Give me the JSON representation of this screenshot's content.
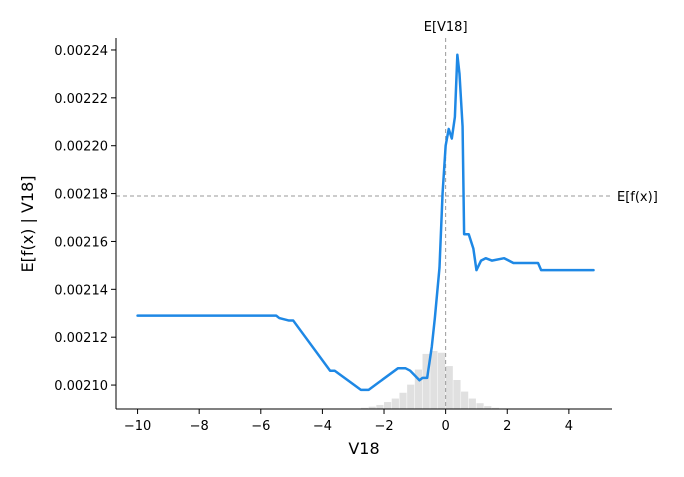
{
  "chart_data": {
    "type": "line",
    "title": "",
    "xlabel": "V18",
    "ylabel": "E[f(x) | V18]",
    "xlim": [
      -10.7,
      5.4
    ],
    "ylim": [
      0.00209,
      0.002245
    ],
    "xticks": [
      -10,
      -8,
      -6,
      -4,
      -2,
      0,
      2,
      4
    ],
    "xtick_labels": [
      "−10",
      "−8",
      "−6",
      "−4",
      "−2",
      "0",
      "2",
      "4"
    ],
    "yticks": [
      0.0021,
      0.00212,
      0.00214,
      0.00216,
      0.00218,
      0.0022,
      0.00222,
      0.00224
    ],
    "ytick_labels": [
      "0.00210",
      "0.00212",
      "0.00214",
      "0.00216",
      "0.00218",
      "0.00220",
      "0.00222",
      "0.00224"
    ],
    "grid": false,
    "series": [
      {
        "color": "#1e88e5",
        "x": [
          -10.0,
          -5.5,
          -5.4,
          -5.1,
          -4.95,
          -3.75,
          -3.6,
          -2.75,
          -2.5,
          -1.55,
          -1.5,
          -1.3,
          -1.15,
          -1.0,
          -0.85,
          -0.75,
          -0.6,
          -0.45,
          -0.35,
          -0.2,
          -0.1,
          0.0,
          0.1,
          0.2,
          0.3,
          0.38,
          0.45,
          0.55,
          0.6,
          0.75,
          0.9,
          1.0,
          1.15,
          1.3,
          1.5,
          1.9,
          2.2,
          2.6,
          3.0,
          3.1,
          3.5,
          4.8
        ],
        "y": [
          0.002129,
          0.002129,
          0.002128,
          0.002127,
          0.002127,
          0.002106,
          0.002106,
          0.002098,
          0.002098,
          0.002107,
          0.002107,
          0.002107,
          0.002106,
          0.002104,
          0.002102,
          0.002103,
          0.002103,
          0.002116,
          0.002128,
          0.002149,
          0.00218,
          0.0022,
          0.002207,
          0.002203,
          0.002212,
          0.002238,
          0.00223,
          0.002208,
          0.002163,
          0.002163,
          0.002157,
          0.002148,
          0.002152,
          0.002153,
          0.002152,
          0.002153,
          0.002151,
          0.002151,
          0.002151,
          0.002148,
          0.002148,
          0.002148
        ]
      }
    ],
    "reference_lines": [
      {
        "orientation": "vertical",
        "value": 0.0,
        "label": "E[V18]",
        "style": "dashed",
        "color": "#999999"
      },
      {
        "orientation": "horizontal",
        "value": 0.002179,
        "label": "E[f(x)]",
        "style": "dashed",
        "color": "#999999"
      }
    ],
    "histogram": {
      "color": "#e0e0e0",
      "bin_start": -2.75,
      "bin_width": 0.25,
      "relative_heights": [
        0.02,
        0.04,
        0.07,
        0.12,
        0.18,
        0.28,
        0.42,
        0.68,
        0.95,
        1.0,
        0.97,
        0.74,
        0.5,
        0.3,
        0.18,
        0.1,
        0.05,
        0.02
      ]
    }
  }
}
